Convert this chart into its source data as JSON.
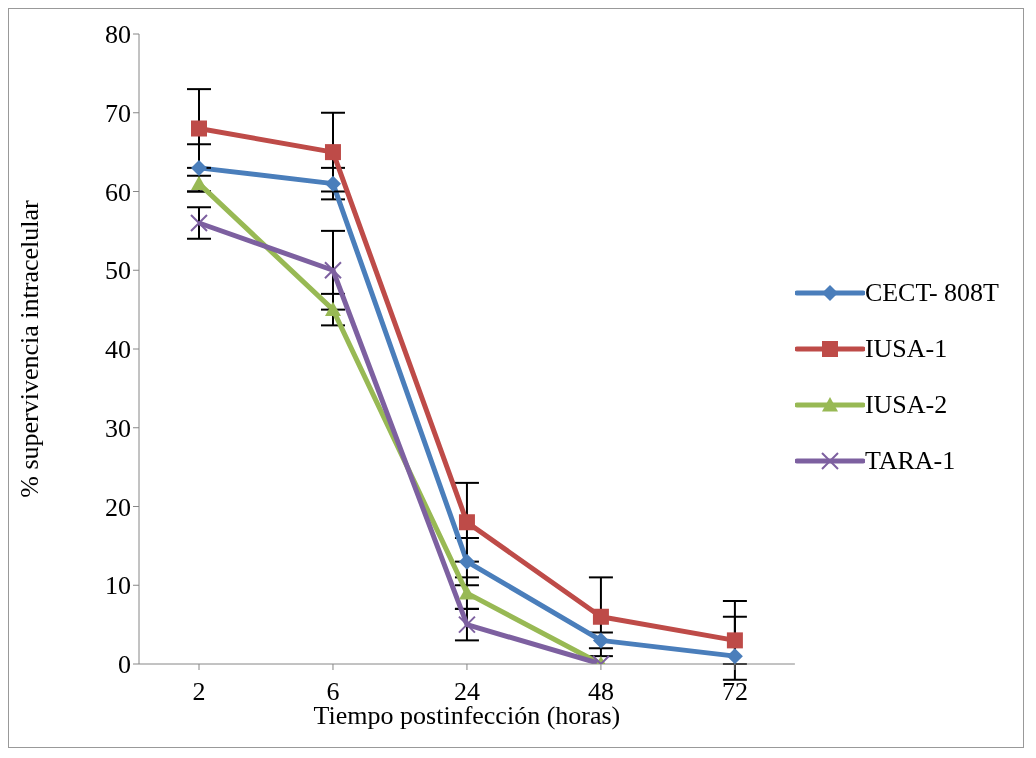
{
  "chart_data": {
    "type": "line",
    "xlabel": "Tiempo postinfección (horas)",
    "ylabel": "% supervivencia intracelular",
    "categories": [
      "2",
      "6",
      "24",
      "48",
      "72"
    ],
    "series": [
      {
        "name": "CECT- 808T",
        "color": "#4a7ebb",
        "marker": "diamond",
        "values": [
          63,
          61,
          13,
          3,
          1
        ],
        "errors": [
          3,
          2,
          3,
          1,
          [
            0,
            6
          ]
        ]
      },
      {
        "name": "IUSA-1",
        "color": "#be4b48",
        "marker": "square",
        "values": [
          68,
          65,
          18,
          6,
          3
        ],
        "errors": [
          5,
          5,
          5,
          5,
          5
        ]
      },
      {
        "name": "IUSA-2",
        "color": "#98b954",
        "marker": "triangle",
        "values": [
          61,
          45,
          9,
          0,
          null
        ],
        "errors": [
          1,
          2,
          2,
          null,
          null
        ]
      },
      {
        "name": "TARA-1",
        "color": "#7d60a0",
        "marker": "cross",
        "values": [
          56,
          50,
          5,
          0,
          null
        ],
        "errors": [
          2,
          5,
          2,
          null,
          null
        ]
      }
    ],
    "ylim": [
      0,
      80
    ],
    "yticks": [
      0,
      10,
      20,
      30,
      40,
      50,
      60,
      70,
      80
    ],
    "legend": "right"
  }
}
